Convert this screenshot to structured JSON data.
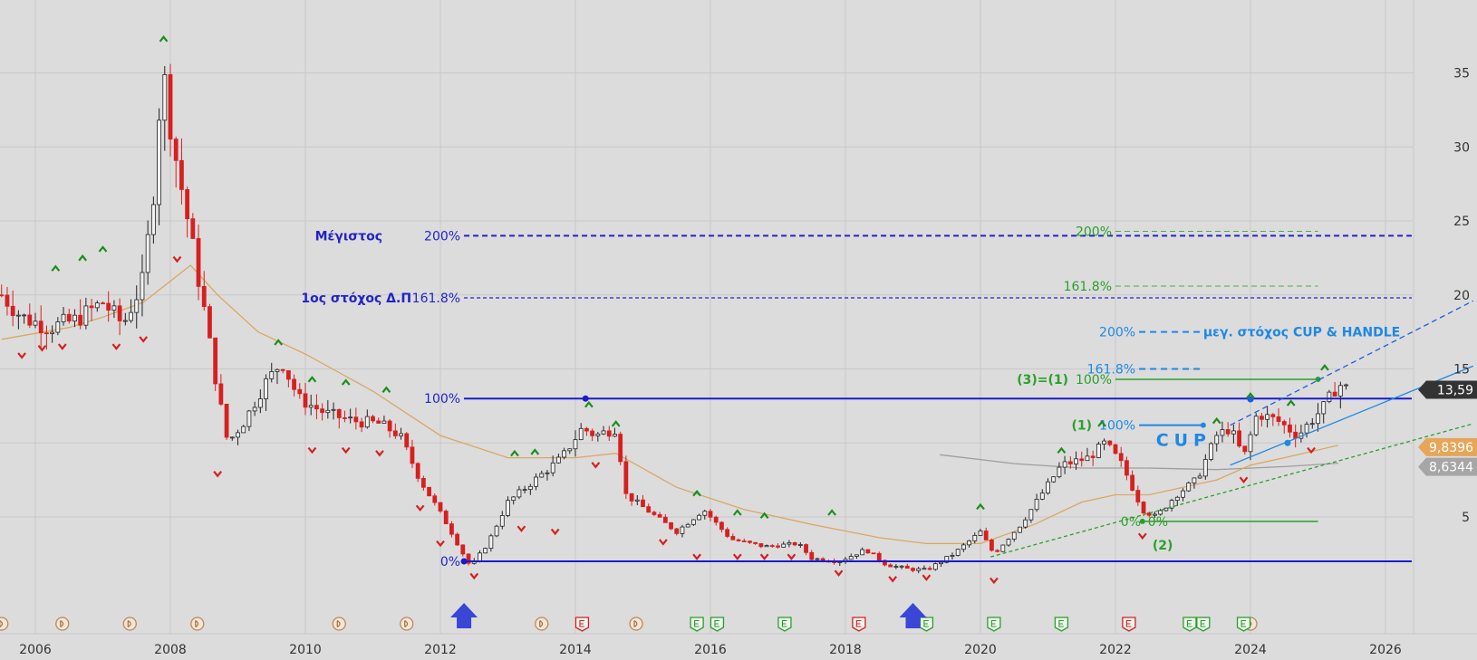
{
  "chart_data": {
    "type": "candlestick",
    "title": "",
    "xlabel": "",
    "ylabel": "",
    "x_range": [
      2005.5,
      2027.3
    ],
    "y_range": [
      0,
      40
    ],
    "x_ticks": [
      "2006",
      "2008",
      "2010",
      "2012",
      "2014",
      "2016",
      "2018",
      "2020",
      "2022",
      "2024",
      "2026"
    ],
    "y_ticks": [
      "5",
      "10",
      "15",
      "20",
      "25",
      "30",
      "35"
    ],
    "grid": true,
    "price_badges": [
      {
        "label": "13,59",
        "value": 13.59,
        "color": "#333333"
      },
      {
        "label": "9,8396",
        "value": 9.84,
        "color": "#e6a65a"
      },
      {
        "label": "8,6344",
        "value": 8.63,
        "color": "#a6a6a6"
      }
    ],
    "price_path": [
      [
        2005.5,
        20.0
      ],
      [
        2005.8,
        18.5
      ],
      [
        2006.2,
        17.8
      ],
      [
        2006.6,
        18.3
      ],
      [
        2007.0,
        19.5
      ],
      [
        2007.3,
        18.0
      ],
      [
        2007.6,
        21.0
      ],
      [
        2007.75,
        27.0
      ],
      [
        2007.88,
        35.5
      ],
      [
        2008.05,
        30.0
      ],
      [
        2008.3,
        24.0
      ],
      [
        2008.5,
        19.0
      ],
      [
        2008.7,
        13.5
      ],
      [
        2008.85,
        10.0
      ],
      [
        2009.1,
        11.5
      ],
      [
        2009.4,
        14.0
      ],
      [
        2009.65,
        15.5
      ],
      [
        2009.9,
        13.0
      ],
      [
        2010.3,
        12.0
      ],
      [
        2010.7,
        11.5
      ],
      [
        2011.1,
        11.3
      ],
      [
        2011.4,
        10.5
      ],
      [
        2011.7,
        7.5
      ],
      [
        2011.9,
        6.0
      ],
      [
        2012.1,
        4.5
      ],
      [
        2012.3,
        2.8
      ],
      [
        2012.45,
        1.6
      ],
      [
        2012.7,
        3.2
      ],
      [
        2013.0,
        6.0
      ],
      [
        2013.4,
        7.5
      ],
      [
        2013.8,
        9.0
      ],
      [
        2014.1,
        11.0
      ],
      [
        2014.3,
        10.5
      ],
      [
        2014.6,
        11.0
      ],
      [
        2014.75,
        6.5
      ],
      [
        2015.2,
        5.0
      ],
      [
        2015.5,
        4.0
      ],
      [
        2015.9,
        5.5
      ],
      [
        2016.3,
        3.5
      ],
      [
        2016.8,
        3.0
      ],
      [
        2017.3,
        3.2
      ],
      [
        2017.5,
        2.2
      ],
      [
        2017.9,
        2.0
      ],
      [
        2018.3,
        2.8
      ],
      [
        2018.6,
        1.8
      ],
      [
        2018.9,
        1.5
      ],
      [
        2019.2,
        1.4
      ],
      [
        2019.6,
        2.5
      ],
      [
        2020.0,
        4.0
      ],
      [
        2020.2,
        2.5
      ],
      [
        2020.6,
        4.5
      ],
      [
        2020.9,
        6.5
      ],
      [
        2021.2,
        8.5
      ],
      [
        2021.6,
        9.0
      ],
      [
        2021.85,
        10.0
      ],
      [
        2022.1,
        8.5
      ],
      [
        2022.4,
        5.5
      ],
      [
        2022.6,
        5.0
      ],
      [
        2022.9,
        6.5
      ],
      [
        2023.2,
        7.5
      ],
      [
        2023.5,
        10.5
      ],
      [
        2023.7,
        11.0
      ],
      [
        2023.9,
        9.0
      ],
      [
        2024.1,
        12.0
      ],
      [
        2024.4,
        11.5
      ],
      [
        2024.7,
        10.5
      ],
      [
        2024.9,
        11.5
      ],
      [
        2025.1,
        12.5
      ],
      [
        2025.3,
        14.0
      ],
      [
        2025.45,
        13.59
      ]
    ],
    "moving_average": [
      [
        2005.5,
        17.0
      ],
      [
        2006.5,
        17.8
      ],
      [
        2007.0,
        18.5
      ],
      [
        2007.6,
        19.5
      ],
      [
        2008.3,
        22.0
      ],
      [
        2008.7,
        20.0
      ],
      [
        2009.3,
        17.5
      ],
      [
        2010.0,
        16.0
      ],
      [
        2011.0,
        13.5
      ],
      [
        2012.0,
        10.5
      ],
      [
        2013.0,
        9.0
      ],
      [
        2014.0,
        9.0
      ],
      [
        2014.6,
        9.3
      ],
      [
        2015.5,
        7.0
      ],
      [
        2016.5,
        5.5
      ],
      [
        2017.5,
        4.5
      ],
      [
        2018.5,
        3.6
      ],
      [
        2019.2,
        3.2
      ],
      [
        2020.0,
        3.2
      ],
      [
        2020.8,
        4.5
      ],
      [
        2021.5,
        6.0
      ],
      [
        2022.0,
        6.5
      ],
      [
        2022.5,
        6.5
      ],
      [
        2023.0,
        7.0
      ],
      [
        2023.5,
        7.5
      ],
      [
        2024.0,
        8.5
      ],
      [
        2024.5,
        9.0
      ],
      [
        2025.3,
        9.84
      ]
    ],
    "long_average": [
      [
        2019.4,
        9.2
      ],
      [
        2020.5,
        8.6
      ],
      [
        2021.5,
        8.3
      ],
      [
        2022.5,
        8.3
      ],
      [
        2023.5,
        8.2
      ],
      [
        2024.5,
        8.4
      ],
      [
        2025.3,
        8.63
      ]
    ],
    "extreme_markers": {
      "highs": [
        2006.3,
        2006.7,
        2007.0,
        2007.9,
        2009.6,
        2010.1,
        2010.6,
        2011.2,
        2013.1,
        2013.4,
        2014.2,
        2014.6,
        2015.8,
        2016.4,
        2016.8,
        2017.8,
        2020.0,
        2021.2,
        2021.8,
        2023.5,
        2024.0,
        2024.6,
        2025.1
      ],
      "lows": [
        2005.8,
        2006.1,
        2006.4,
        2007.2,
        2007.6,
        2008.1,
        2008.7,
        2010.1,
        2010.6,
        2011.1,
        2011.7,
        2012.0,
        2012.5,
        2013.2,
        2013.7,
        2014.3,
        2015.3,
        2015.8,
        2016.4,
        2016.8,
        2017.2,
        2017.9,
        2018.7,
        2019.2,
        2020.2,
        2022.4,
        2023.9,
        2024.9
      ],
      "high_value": [
        21.5,
        22.2,
        22.8,
        37.0,
        16.5,
        14.0,
        13.8,
        13.3,
        9.0,
        9.1,
        12.3,
        11.0,
        6.3,
        5.0,
        4.8,
        5.0,
        5.4,
        9.2,
        11.0,
        11.2,
        12.9,
        12.4,
        14.8
      ],
      "low_value": [
        16.2,
        16.7,
        16.8,
        16.8,
        17.3,
        22.7,
        8.2,
        9.8,
        9.8,
        9.6,
        5.9,
        3.5,
        1.3,
        4.5,
        4.3,
        8.8,
        3.6,
        2.6,
        2.6,
        2.6,
        2.6,
        1.5,
        1.1,
        1.2,
        1.0,
        4.0,
        7.8,
        9.8
      ]
    },
    "event_markers": {
      "dividends": [
        2005.5,
        2006.4,
        2007.4,
        2008.4,
        2010.5,
        2011.5,
        2013.5,
        2014.9,
        2019.2,
        2024.0
      ],
      "earnings": [
        2014.1,
        2015.8,
        2016.1,
        2017.1,
        2018.2,
        2019.2,
        2020.2,
        2021.2,
        2022.2,
        2023.1,
        2023.3,
        2023.9
      ]
    },
    "arrows": [
      2012.35,
      2019.0
    ],
    "fibonacci_main": {
      "levels": [
        {
          "label": "0%",
          "value": 2.0
        },
        {
          "label": "100%",
          "value": 13.0
        },
        {
          "label": "161.8%",
          "value": 19.8
        },
        {
          "label": "200%",
          "value": 24.0
        }
      ],
      "annotations": [
        {
          "text": "1ος στόχος Δ.Π",
          "level": "161.8%"
        },
        {
          "text": "Μέγιστος",
          "level": "200%"
        }
      ]
    },
    "fibonacci_green": {
      "levels": [
        {
          "label": "0%",
          "value": 4.7
        },
        {
          "label": "0%",
          "value": 4.7
        },
        {
          "label": "100%",
          "value": 14.3
        },
        {
          "label": "161.8%",
          "value": 20.6
        },
        {
          "label": "200%",
          "value": 24.3
        }
      ],
      "wave_labels": [
        "(3)=(1)",
        "(1)",
        "(2)"
      ]
    },
    "fibonacci_cup": {
      "levels": [
        {
          "label": "100%",
          "value": 11.2
        },
        {
          "label": "161.8%",
          "value": 15.0
        },
        {
          "label": "200%",
          "value": 17.5
        }
      ],
      "annotations": [
        {
          "text": "CUP",
          "x": 2022.6,
          "y": 9.8
        },
        {
          "text": "μεγ. στόχος CUP & HANDLE",
          "level": "200%"
        }
      ]
    },
    "trendlines": [
      {
        "name": "green support",
        "color": "#2aa02a",
        "dash": "4,3",
        "from": [
          2020.15,
          2.3
        ],
        "to": [
          2027.3,
          11.3
        ]
      },
      {
        "name": "blue channel lower",
        "color": "#1e88e5",
        "dash": "",
        "from": [
          2023.7,
          8.5
        ],
        "to": [
          2027.3,
          15.2
        ]
      },
      {
        "name": "blue channel upper",
        "color": "#1e5be5",
        "dash": "6,4",
        "from": [
          2023.7,
          11.2
        ],
        "to": [
          2027.3,
          19.6
        ]
      }
    ]
  }
}
